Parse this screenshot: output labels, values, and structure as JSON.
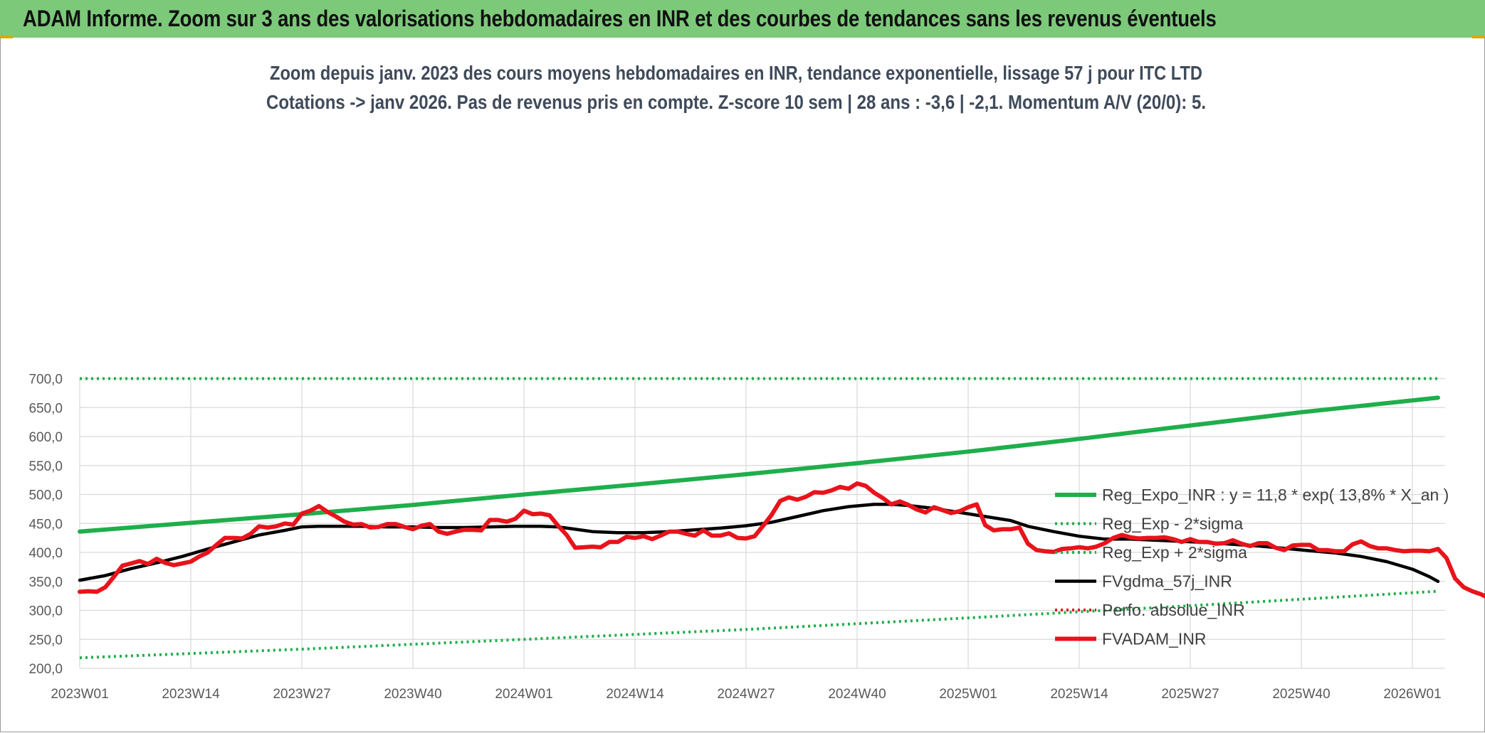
{
  "header": {
    "title": "ADAM Informe. Zoom sur 3 ans des valorisations hebdomadaires en INR et des courbes de tendances sans les revenus éventuels"
  },
  "chart_data": {
    "type": "line",
    "subtitle_line1": "Zoom depuis janv. 2023 des cours moyens hebdomadaires en INR, tendance exponentielle, lissage 57 j pour ITC LTD",
    "subtitle_line2": "Cotations -> janv 2026. Pas de revenus pris en compte. Z-score 10 sem | 28 ans : -3,6 | -2,1. Momentum A/V (20/0): 5.",
    "ylim": [
      200,
      700
    ],
    "y_ticks": [
      "200,0",
      "250,0",
      "300,0",
      "350,0",
      "400,0",
      "450,0",
      "500,0",
      "550,0",
      "600,0",
      "650,0",
      "700,0"
    ],
    "x_tick_labels": [
      "2023W01",
      "2023W14",
      "2023W27",
      "2023W40",
      "2024W01",
      "2024W14",
      "2024W27",
      "2024W40",
      "2025W01",
      "2025W14",
      "2025W27",
      "2025W40",
      "2026W01"
    ],
    "legend_position": "bottom-right",
    "grid": true,
    "series": [
      {
        "name": "Reg_Expo_INR : y = 11,8 * exp( 13,8% * X_an )",
        "color": "#1fae4b",
        "style": "solid-thick",
        "points": [
          [
            0,
            436
          ],
          [
            13,
            451
          ],
          [
            26,
            466
          ],
          [
            39,
            482
          ],
          [
            52,
            500
          ],
          [
            65,
            517
          ],
          [
            78,
            535
          ],
          [
            91,
            554
          ],
          [
            104,
            574
          ],
          [
            117,
            596
          ],
          [
            130,
            619
          ],
          [
            143,
            642
          ],
          [
            159,
            667
          ]
        ]
      },
      {
        "name": "Reg_Exp - 2*sigma",
        "color": "#1fae4b",
        "style": "dotted",
        "points": [
          [
            0,
            700
          ],
          [
            159,
            700
          ]
        ]
      },
      {
        "name": "Reg_Exp + 2*sigma",
        "color": "#1fae4b",
        "style": "dotted",
        "points": [
          [
            0,
            218
          ],
          [
            26,
            233
          ],
          [
            52,
            250
          ],
          [
            78,
            267
          ],
          [
            104,
            287
          ],
          [
            130,
            308
          ],
          [
            159,
            333
          ]
        ]
      },
      {
        "name": "FVgdma_57j_INR",
        "color": "#000000",
        "style": "solid",
        "points": [
          [
            0,
            352
          ],
          [
            3,
            360
          ],
          [
            6,
            372
          ],
          [
            9,
            382
          ],
          [
            12,
            393
          ],
          [
            15,
            406
          ],
          [
            18,
            418
          ],
          [
            21,
            430
          ],
          [
            24,
            438
          ],
          [
            26,
            444
          ],
          [
            28,
            445
          ],
          [
            30,
            445
          ],
          [
            33,
            445
          ],
          [
            36,
            444
          ],
          [
            39,
            444
          ],
          [
            42,
            443
          ],
          [
            45,
            443
          ],
          [
            48,
            444
          ],
          [
            51,
            445
          ],
          [
            54,
            445
          ],
          [
            56,
            444
          ],
          [
            58,
            440
          ],
          [
            60,
            436
          ],
          [
            63,
            434
          ],
          [
            66,
            434
          ],
          [
            69,
            436
          ],
          [
            72,
            439
          ],
          [
            75,
            442
          ],
          [
            78,
            446
          ],
          [
            81,
            452
          ],
          [
            84,
            462
          ],
          [
            87,
            472
          ],
          [
            90,
            479
          ],
          [
            93,
            483
          ],
          [
            95,
            483
          ],
          [
            97,
            481
          ],
          [
            100,
            476
          ],
          [
            103,
            469
          ],
          [
            106,
            462
          ],
          [
            109,
            455
          ],
          [
            111,
            445
          ],
          [
            114,
            436
          ],
          [
            117,
            428
          ],
          [
            120,
            423
          ],
          [
            123,
            423
          ],
          [
            126,
            421
          ],
          [
            129,
            419
          ],
          [
            132,
            417
          ],
          [
            135,
            414
          ],
          [
            138,
            411
          ],
          [
            141,
            407
          ],
          [
            144,
            403
          ],
          [
            147,
            399
          ],
          [
            150,
            393
          ],
          [
            153,
            384
          ],
          [
            156,
            371
          ],
          [
            158,
            358
          ],
          [
            159,
            350
          ]
        ]
      },
      {
        "name": "Perfo. absolue_INR",
        "color": "#e02020",
        "style": "dotted",
        "points": []
      },
      {
        "name": "FVADAM_INR",
        "color": "#e8131b",
        "style": "solid-thick",
        "points": [
          [
            0,
            332
          ],
          [
            1,
            333
          ],
          [
            2,
            332
          ],
          [
            3,
            340
          ],
          [
            4,
            358
          ],
          [
            5,
            377
          ],
          [
            6,
            381
          ],
          [
            7,
            385
          ],
          [
            8,
            380
          ],
          [
            9,
            389
          ],
          [
            10,
            382
          ],
          [
            11,
            378
          ],
          [
            12,
            381
          ],
          [
            13,
            384
          ],
          [
            14,
            393
          ],
          [
            15,
            400
          ],
          [
            16,
            413
          ],
          [
            17,
            425
          ],
          [
            18,
            425
          ],
          [
            19,
            424
          ],
          [
            20,
            432
          ],
          [
            21,
            445
          ],
          [
            22,
            443
          ],
          [
            23,
            445
          ],
          [
            24,
            450
          ],
          [
            25,
            448
          ],
          [
            26,
            467
          ],
          [
            27,
            472
          ],
          [
            28,
            480
          ],
          [
            29,
            470
          ],
          [
            30,
            462
          ],
          [
            31,
            453
          ],
          [
            32,
            448
          ],
          [
            33,
            449
          ],
          [
            34,
            443
          ],
          [
            35,
            444
          ],
          [
            36,
            449
          ],
          [
            37,
            449
          ],
          [
            38,
            444
          ],
          [
            39,
            440
          ],
          [
            40,
            446
          ],
          [
            41,
            449
          ],
          [
            42,
            436
          ],
          [
            43,
            432
          ],
          [
            44,
            436
          ],
          [
            45,
            439
          ],
          [
            46,
            439
          ],
          [
            47,
            438
          ],
          [
            48,
            456
          ],
          [
            49,
            456
          ],
          [
            50,
            453
          ],
          [
            51,
            458
          ],
          [
            52,
            472
          ],
          [
            53,
            466
          ],
          [
            54,
            467
          ],
          [
            55,
            464
          ],
          [
            56,
            446
          ],
          [
            57,
            430
          ],
          [
            58,
            408
          ],
          [
            59,
            409
          ],
          [
            60,
            410
          ],
          [
            61,
            409
          ],
          [
            62,
            418
          ],
          [
            63,
            418
          ],
          [
            64,
            427
          ],
          [
            65,
            425
          ],
          [
            66,
            428
          ],
          [
            67,
            423
          ],
          [
            68,
            429
          ],
          [
            69,
            436
          ],
          [
            70,
            436
          ],
          [
            71,
            432
          ],
          [
            72,
            429
          ],
          [
            73,
            438
          ],
          [
            74,
            429
          ],
          [
            75,
            429
          ],
          [
            76,
            433
          ],
          [
            77,
            425
          ],
          [
            78,
            424
          ],
          [
            79,
            428
          ],
          [
            80,
            446
          ],
          [
            81,
            465
          ],
          [
            82,
            489
          ],
          [
            83,
            495
          ],
          [
            84,
            491
          ],
          [
            85,
            496
          ],
          [
            86,
            504
          ],
          [
            87,
            503
          ],
          [
            88,
            507
          ],
          [
            89,
            513
          ],
          [
            90,
            510
          ],
          [
            91,
            519
          ],
          [
            92,
            515
          ],
          [
            93,
            503
          ],
          [
            94,
            494
          ],
          [
            95,
            483
          ],
          [
            96,
            488
          ],
          [
            97,
            482
          ],
          [
            98,
            474
          ],
          [
            99,
            469
          ],
          [
            100,
            478
          ],
          [
            101,
            473
          ],
          [
            102,
            468
          ],
          [
            103,
            471
          ],
          [
            104,
            478
          ],
          [
            105,
            483
          ],
          [
            106,
            447
          ],
          [
            107,
            438
          ],
          [
            108,
            440
          ],
          [
            109,
            440
          ],
          [
            110,
            443
          ],
          [
            111,
            415
          ],
          [
            112,
            404
          ],
          [
            113,
            402
          ],
          [
            114,
            401
          ],
          [
            115,
            406
          ],
          [
            116,
            407
          ],
          [
            117,
            409
          ],
          [
            118,
            407
          ],
          [
            119,
            410
          ],
          [
            120,
            416
          ],
          [
            121,
            425
          ],
          [
            122,
            430
          ],
          [
            123,
            426
          ],
          [
            124,
            424
          ],
          [
            125,
            425
          ],
          [
            126,
            425
          ],
          [
            127,
            426
          ],
          [
            128,
            423
          ],
          [
            129,
            418
          ],
          [
            130,
            423
          ],
          [
            131,
            418
          ],
          [
            132,
            418
          ],
          [
            133,
            415
          ],
          [
            134,
            416
          ],
          [
            135,
            421
          ],
          [
            136,
            415
          ],
          [
            137,
            411
          ],
          [
            138,
            416
          ],
          [
            139,
            416
          ],
          [
            140,
            408
          ],
          [
            141,
            404
          ],
          [
            142,
            412
          ],
          [
            143,
            413
          ],
          [
            144,
            413
          ],
          [
            145,
            404
          ],
          [
            146,
            404
          ],
          [
            147,
            402
          ],
          [
            148,
            402
          ],
          [
            149,
            414
          ],
          [
            150,
            419
          ],
          [
            151,
            411
          ],
          [
            152,
            407
          ],
          [
            153,
            407
          ],
          [
            154,
            404
          ],
          [
            155,
            402
          ],
          [
            156,
            403
          ],
          [
            157,
            403
          ],
          [
            158,
            402
          ],
          [
            159,
            406
          ],
          [
            160,
            390
          ],
          [
            161,
            355
          ],
          [
            162,
            340
          ],
          [
            163,
            333
          ],
          [
            164,
            328
          ],
          [
            165,
            321
          ]
        ]
      }
    ]
  }
}
